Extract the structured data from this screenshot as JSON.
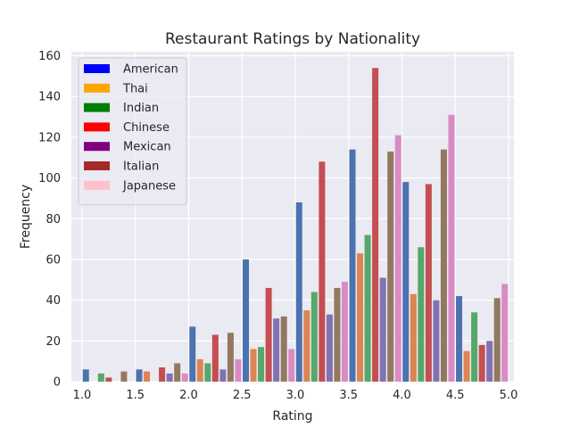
{
  "chart_data": {
    "type": "bar",
    "title": "Restaurant Ratings by Nationality",
    "xlabel": "Rating",
    "ylabel": "Frequency",
    "xlim": [
      0.9,
      5.05
    ],
    "ylim": [
      0,
      162
    ],
    "x_ticks": [
      "1.0",
      "1.5",
      "2.0",
      "2.5",
      "3.0",
      "3.5",
      "4.0",
      "4.5",
      "5.0"
    ],
    "y_ticks": [
      "0",
      "20",
      "40",
      "60",
      "80",
      "100",
      "120",
      "140",
      "160"
    ],
    "grid": true,
    "legend_position": "top-left",
    "bin_edges": [
      1.0,
      1.5,
      2.0,
      2.5,
      3.0,
      3.5,
      4.0,
      4.5,
      5.0
    ],
    "series": [
      {
        "name": "American",
        "legend_color": "#0000ff",
        "bar_color": "#4c72b0",
        "values": [
          6,
          6,
          27,
          60,
          88,
          114,
          98,
          42
        ]
      },
      {
        "name": "Thai",
        "legend_color": "#ffa500",
        "bar_color": "#dd8452",
        "values": [
          0,
          5,
          11,
          16,
          35,
          63,
          43,
          15
        ]
      },
      {
        "name": "Indian",
        "legend_color": "#008000",
        "bar_color": "#55a868",
        "values": [
          4,
          0,
          9,
          17,
          44,
          72,
          66,
          34
        ]
      },
      {
        "name": "Chinese",
        "legend_color": "#ff0000",
        "bar_color": "#c44e52",
        "values": [
          2,
          7,
          23,
          46,
          108,
          154,
          97,
          18
        ]
      },
      {
        "name": "Mexican",
        "legend_color": "#800080",
        "bar_color": "#8172b3",
        "values": [
          0,
          4,
          6,
          31,
          33,
          51,
          40,
          20
        ]
      },
      {
        "name": "Italian",
        "legend_color": "#a52a2a",
        "bar_color": "#937860",
        "values": [
          5,
          9,
          24,
          32,
          46,
          113,
          114,
          41
        ]
      },
      {
        "name": "Japanese",
        "legend_color": "#ffc0cb",
        "bar_color": "#da8bc3",
        "values": [
          0,
          4,
          11,
          16,
          49,
          121,
          131,
          48
        ]
      }
    ]
  }
}
